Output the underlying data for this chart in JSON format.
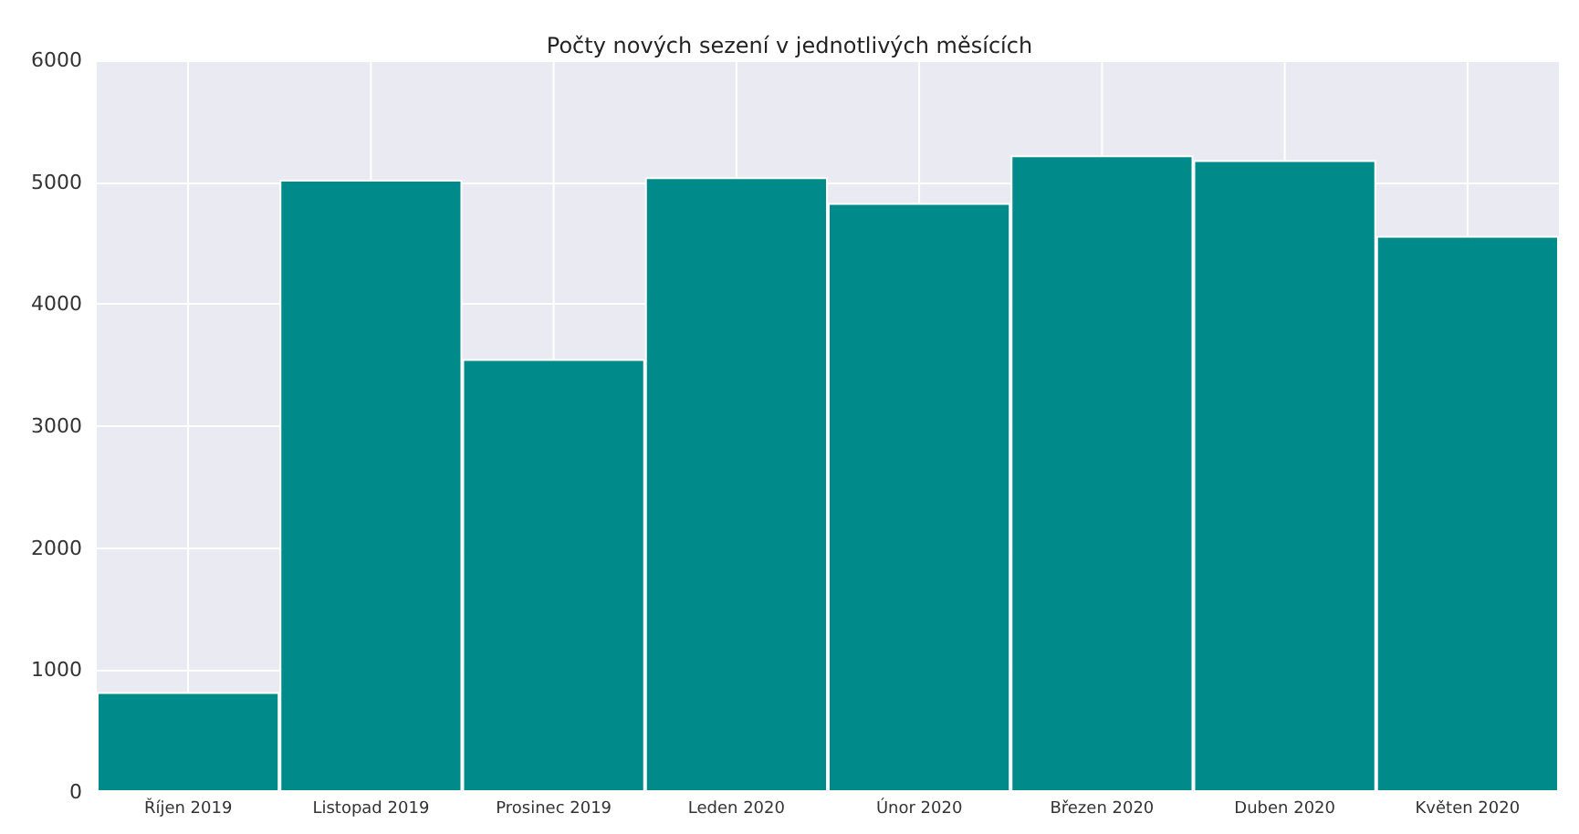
{
  "chart_data": {
    "type": "bar",
    "title": "Počty nových sezení v jednotlivých měsících",
    "categories": [
      "Říjen 2019",
      "Listopad 2019",
      "Prosinec 2019",
      "Leden 2020",
      "Únor 2020",
      "Březen 2020",
      "Duben 2020",
      "Květen 2020"
    ],
    "values": [
      820,
      5020,
      3550,
      5040,
      4830,
      5220,
      5180,
      4560
    ],
    "color": "#008b8b",
    "ylim": [
      0,
      6000
    ],
    "yticks": [
      0,
      1000,
      2000,
      3000,
      4000,
      5000,
      6000
    ],
    "grid": true
  }
}
